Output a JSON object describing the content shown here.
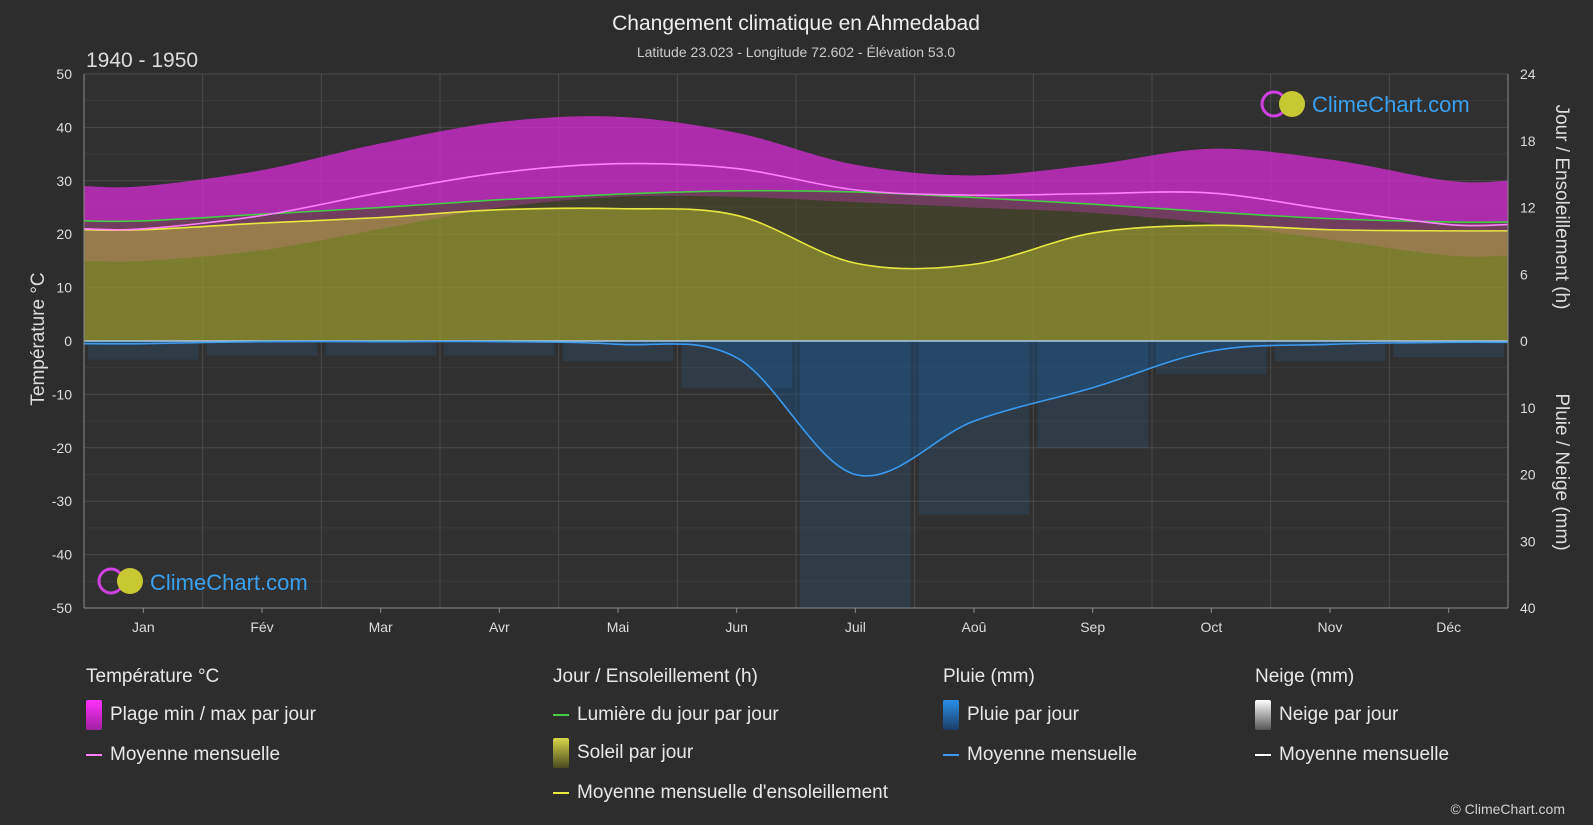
{
  "title": "Changement climatique en Ahmedabad",
  "subtitle": "Latitude 23.023 - Longitude 72.602 - Élévation 53.0",
  "period": "1940 - 1950",
  "brand": "ClimeChart.com",
  "copyright": "© ClimeChart.com",
  "colors": {
    "background": "#2d2d2d",
    "temp_range": "#d62bd6",
    "temp_mean": "#ff80ff",
    "daylight": "#44cc44",
    "sunshine": "#c8c832",
    "sunshine_mean": "#e8e840",
    "rain": "#2a8ee8",
    "rain_mean": "#3a9af0",
    "snow_mean": "#ffffff"
  },
  "legend": {
    "temp": {
      "title": "Température °C",
      "range": "Plage min / max par jour",
      "mean": "Moyenne mensuelle"
    },
    "sun": {
      "title": "Jour / Ensoleillement (h)",
      "daylight": "Lumière du jour par jour",
      "sunshine": "Soleil par jour",
      "mean": "Moyenne mensuelle d'ensoleillement"
    },
    "rain": {
      "title": "Pluie (mm)",
      "daily": "Pluie par jour",
      "mean": "Moyenne mensuelle"
    },
    "snow": {
      "title": "Neige (mm)",
      "daily": "Neige par jour",
      "mean": "Moyenne mensuelle"
    }
  },
  "chart_data": {
    "type": "area",
    "categories": [
      "Jan",
      "Fév",
      "Mar",
      "Avr",
      "Mai",
      "Jun",
      "Juil",
      "Aoû",
      "Sep",
      "Oct",
      "Nov",
      "Déc"
    ],
    "y_left": {
      "label": "Température °C",
      "range": [
        -50,
        50
      ],
      "ticks": [
        50,
        40,
        30,
        20,
        10,
        0,
        -10,
        -20,
        -30,
        -40,
        -50
      ]
    },
    "y_right_top": {
      "label": "Jour / Ensoleillement (h)",
      "range": [
        0,
        24
      ],
      "ticks": [
        24,
        18,
        12,
        6,
        0
      ]
    },
    "y_right_bottom": {
      "label": "Pluie / Neige (mm)",
      "range": [
        0,
        40
      ],
      "ticks": [
        10,
        20,
        30,
        40
      ]
    },
    "grid": true,
    "series": [
      {
        "name": "Plage min / max par jour",
        "kind": "band",
        "min": [
          15,
          17,
          21,
          25,
          27,
          27,
          26,
          25,
          24,
          22,
          19,
          16
        ],
        "max": [
          29,
          32,
          37,
          41,
          42,
          39,
          33,
          31,
          33,
          36,
          34,
          30
        ]
      },
      {
        "name": "Moyenne mensuelle",
        "kind": "temp_mean",
        "values": [
          21,
          23.5,
          27.8,
          31.5,
          33.2,
          32.3,
          28.3,
          27.3,
          27.6,
          27.7,
          24.6,
          21.8
        ]
      },
      {
        "name": "Lumière du jour par jour",
        "kind": "daylight_h",
        "values": [
          10.8,
          11.4,
          12.0,
          12.7,
          13.2,
          13.5,
          13.4,
          12.9,
          12.3,
          11.6,
          11.0,
          10.7
        ]
      },
      {
        "name": "Moyenne mensuelle d'ensoleillement",
        "kind": "sunshine_h",
        "values": [
          10.0,
          10.6,
          11.1,
          11.8,
          11.9,
          11.3,
          7.0,
          6.9,
          9.7,
          10.4,
          10.0,
          9.9
        ]
      },
      {
        "name": "Moyenne mensuelle",
        "kind": "rain_mm",
        "values": [
          0.4,
          0.1,
          0.1,
          0.1,
          0.5,
          2.5,
          20.0,
          12.0,
          7.0,
          1.5,
          0.5,
          0.2
        ]
      }
    ]
  }
}
